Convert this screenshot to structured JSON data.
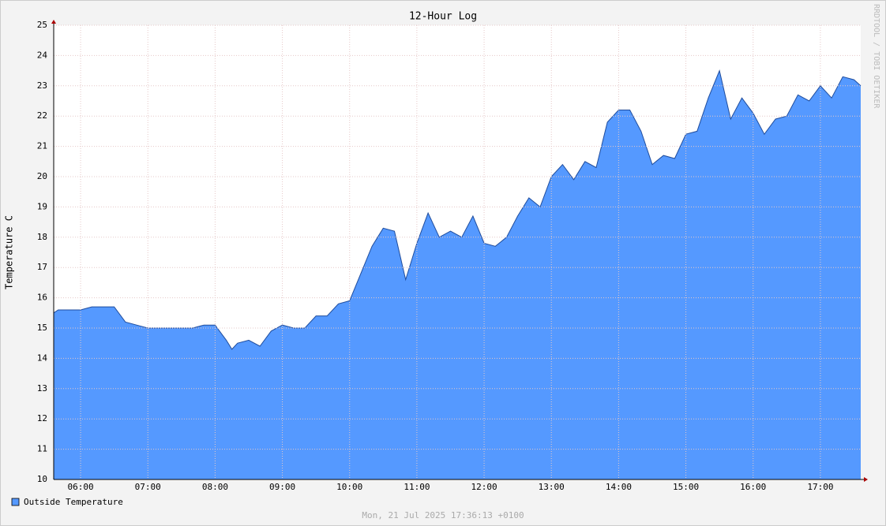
{
  "chart_data": {
    "type": "area",
    "title": "12-Hour Log",
    "y_label": "Temperature C",
    "watermark": "RRDTOOL / TOBI OETIKER",
    "timestamp": "Mon, 21 Jul 2025 17:36:13 +0100",
    "x": [
      "05:36",
      "05:40",
      "05:50",
      "06:00",
      "06:10",
      "06:20",
      "06:30",
      "06:40",
      "06:50",
      "07:00",
      "07:10",
      "07:20",
      "07:30",
      "07:40",
      "07:50",
      "08:00",
      "08:10",
      "08:15",
      "08:20",
      "08:30",
      "08:40",
      "08:50",
      "09:00",
      "09:10",
      "09:20",
      "09:30",
      "09:40",
      "09:50",
      "10:00",
      "10:10",
      "10:20",
      "10:30",
      "10:40",
      "10:50",
      "11:00",
      "11:10",
      "11:20",
      "11:30",
      "11:40",
      "11:50",
      "12:00",
      "12:10",
      "12:20",
      "12:30",
      "12:40",
      "12:50",
      "13:00",
      "13:10",
      "13:20",
      "13:30",
      "13:40",
      "13:50",
      "14:00",
      "14:10",
      "14:20",
      "14:30",
      "14:40",
      "14:50",
      "15:00",
      "15:10",
      "15:20",
      "15:30",
      "15:40",
      "15:50",
      "16:00",
      "16:10",
      "16:20",
      "16:30",
      "16:40",
      "16:50",
      "17:00",
      "17:10",
      "17:20",
      "17:30",
      "17:36"
    ],
    "series": [
      {
        "name": "Outside Temperature",
        "color": "#5599ff",
        "line_color": "#1f4c9c",
        "values": [
          15.5,
          15.6,
          15.6,
          15.6,
          15.7,
          15.7,
          15.7,
          15.2,
          15.1,
          15.0,
          15.0,
          15.0,
          15.0,
          15.0,
          15.1,
          15.1,
          14.6,
          14.3,
          14.5,
          14.6,
          14.4,
          14.9,
          15.1,
          15.0,
          15.0,
          15.4,
          15.4,
          15.8,
          15.9,
          16.8,
          17.7,
          18.3,
          18.2,
          16.6,
          17.8,
          18.8,
          18.0,
          18.2,
          18.0,
          18.7,
          17.8,
          17.7,
          18.0,
          18.7,
          19.3,
          19.0,
          20.0,
          20.4,
          19.9,
          20.5,
          20.3,
          21.8,
          22.2,
          22.2,
          21.5,
          20.4,
          20.7,
          20.6,
          21.4,
          21.5,
          22.6,
          23.5,
          21.9,
          22.6,
          22.1,
          21.4,
          21.9,
          22.0,
          22.7,
          22.5,
          23.0,
          22.6,
          23.3,
          23.2,
          23.0
        ]
      }
    ],
    "xlim": [
      "05:36",
      "17:36"
    ],
    "xticks": [
      "06:00",
      "07:00",
      "08:00",
      "09:00",
      "10:00",
      "11:00",
      "12:00",
      "13:00",
      "14:00",
      "15:00",
      "16:00",
      "17:00"
    ],
    "ylim": [
      10,
      25
    ],
    "yticks": [
      10,
      11,
      12,
      13,
      14,
      15,
      16,
      17,
      18,
      19,
      20,
      21,
      22,
      23,
      24,
      25
    ],
    "grid": true
  }
}
